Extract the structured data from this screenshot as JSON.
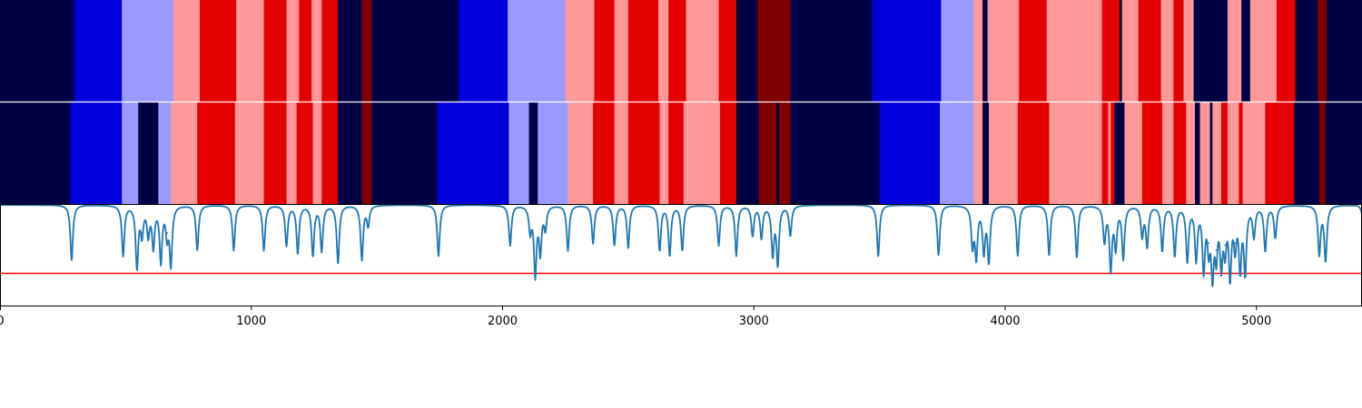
{
  "chart_data": {
    "type": "heatmap",
    "description_free": true,
    "x_range": [
      0,
      5420
    ],
    "x_ticks": [
      0,
      1000,
      2000,
      3000,
      4000,
      5000
    ],
    "x_tick_labels": [
      "0",
      "1000",
      "2000",
      "3000",
      "4000",
      "5000"
    ],
    "palette": {
      "navy": "#000044",
      "blue": "#0000DD",
      "lightblue": "#9999FF",
      "pink": "#FF9999",
      "red": "#E50000",
      "darkred": "#800000"
    },
    "tracks": [
      {
        "segments": [
          {
            "start": 0,
            "end": 295,
            "state": "navy"
          },
          {
            "start": 295,
            "end": 485,
            "state": "blue"
          },
          {
            "start": 485,
            "end": 690,
            "state": "lightblue"
          },
          {
            "start": 690,
            "end": 795,
            "state": "pink"
          },
          {
            "start": 795,
            "end": 940,
            "state": "red"
          },
          {
            "start": 940,
            "end": 1050,
            "state": "pink"
          },
          {
            "start": 1050,
            "end": 1140,
            "state": "red"
          },
          {
            "start": 1140,
            "end": 1190,
            "state": "pink"
          },
          {
            "start": 1190,
            "end": 1240,
            "state": "red"
          },
          {
            "start": 1240,
            "end": 1280,
            "state": "pink"
          },
          {
            "start": 1280,
            "end": 1345,
            "state": "red"
          },
          {
            "start": 1345,
            "end": 1440,
            "state": "navy"
          },
          {
            "start": 1440,
            "end": 1480,
            "state": "darkred"
          },
          {
            "start": 1480,
            "end": 1825,
            "state": "navy"
          },
          {
            "start": 1825,
            "end": 2020,
            "state": "blue"
          },
          {
            "start": 2020,
            "end": 2250,
            "state": "lightblue"
          },
          {
            "start": 2250,
            "end": 2365,
            "state": "pink"
          },
          {
            "start": 2365,
            "end": 2445,
            "state": "red"
          },
          {
            "start": 2445,
            "end": 2500,
            "state": "pink"
          },
          {
            "start": 2500,
            "end": 2620,
            "state": "red"
          },
          {
            "start": 2620,
            "end": 2660,
            "state": "pink"
          },
          {
            "start": 2660,
            "end": 2730,
            "state": "red"
          },
          {
            "start": 2730,
            "end": 2860,
            "state": "pink"
          },
          {
            "start": 2860,
            "end": 2930,
            "state": "red"
          },
          {
            "start": 2930,
            "end": 3015,
            "state": "navy"
          },
          {
            "start": 3015,
            "end": 3145,
            "state": "darkred"
          },
          {
            "start": 3145,
            "end": 3470,
            "state": "navy"
          },
          {
            "start": 3470,
            "end": 3745,
            "state": "blue"
          },
          {
            "start": 3745,
            "end": 3875,
            "state": "lightblue"
          },
          {
            "start": 3875,
            "end": 3910,
            "state": "pink"
          },
          {
            "start": 3910,
            "end": 3930,
            "state": "navy"
          },
          {
            "start": 3930,
            "end": 4055,
            "state": "pink"
          },
          {
            "start": 4055,
            "end": 4165,
            "state": "red"
          },
          {
            "start": 4165,
            "end": 4385,
            "state": "pink"
          },
          {
            "start": 4385,
            "end": 4455,
            "state": "red"
          },
          {
            "start": 4455,
            "end": 4465,
            "state": "navy"
          },
          {
            "start": 4465,
            "end": 4530,
            "state": "pink"
          },
          {
            "start": 4530,
            "end": 4620,
            "state": "red"
          },
          {
            "start": 4620,
            "end": 4670,
            "state": "pink"
          },
          {
            "start": 4670,
            "end": 4710,
            "state": "red"
          },
          {
            "start": 4710,
            "end": 4750,
            "state": "pink"
          },
          {
            "start": 4750,
            "end": 4885,
            "state": "navy"
          },
          {
            "start": 4885,
            "end": 4940,
            "state": "pink"
          },
          {
            "start": 4940,
            "end": 4975,
            "state": "navy"
          },
          {
            "start": 4975,
            "end": 5080,
            "state": "pink"
          },
          {
            "start": 5080,
            "end": 5155,
            "state": "red"
          },
          {
            "start": 5155,
            "end": 5245,
            "state": "navy"
          },
          {
            "start": 5245,
            "end": 5280,
            "state": "darkred"
          },
          {
            "start": 5280,
            "end": 5420,
            "state": "navy"
          }
        ]
      },
      {
        "segments": [
          {
            "start": 0,
            "end": 280,
            "state": "navy"
          },
          {
            "start": 280,
            "end": 485,
            "state": "blue"
          },
          {
            "start": 485,
            "end": 550,
            "state": "lightblue"
          },
          {
            "start": 550,
            "end": 630,
            "state": "navy"
          },
          {
            "start": 630,
            "end": 680,
            "state": "lightblue"
          },
          {
            "start": 680,
            "end": 785,
            "state": "pink"
          },
          {
            "start": 785,
            "end": 935,
            "state": "red"
          },
          {
            "start": 935,
            "end": 1050,
            "state": "pink"
          },
          {
            "start": 1050,
            "end": 1140,
            "state": "red"
          },
          {
            "start": 1140,
            "end": 1180,
            "state": "pink"
          },
          {
            "start": 1180,
            "end": 1245,
            "state": "red"
          },
          {
            "start": 1245,
            "end": 1280,
            "state": "pink"
          },
          {
            "start": 1280,
            "end": 1345,
            "state": "red"
          },
          {
            "start": 1345,
            "end": 1440,
            "state": "navy"
          },
          {
            "start": 1440,
            "end": 1480,
            "state": "darkred"
          },
          {
            "start": 1480,
            "end": 1740,
            "state": "navy"
          },
          {
            "start": 1740,
            "end": 2025,
            "state": "blue"
          },
          {
            "start": 2025,
            "end": 2105,
            "state": "lightblue"
          },
          {
            "start": 2105,
            "end": 2140,
            "state": "navy"
          },
          {
            "start": 2140,
            "end": 2260,
            "state": "lightblue"
          },
          {
            "start": 2260,
            "end": 2360,
            "state": "pink"
          },
          {
            "start": 2360,
            "end": 2445,
            "state": "red"
          },
          {
            "start": 2445,
            "end": 2500,
            "state": "pink"
          },
          {
            "start": 2500,
            "end": 2625,
            "state": "red"
          },
          {
            "start": 2625,
            "end": 2660,
            "state": "pink"
          },
          {
            "start": 2660,
            "end": 2720,
            "state": "red"
          },
          {
            "start": 2720,
            "end": 2865,
            "state": "pink"
          },
          {
            "start": 2865,
            "end": 2930,
            "state": "red"
          },
          {
            "start": 2930,
            "end": 3020,
            "state": "navy"
          },
          {
            "start": 3020,
            "end": 3090,
            "state": "darkred"
          },
          {
            "start": 3090,
            "end": 3100,
            "state": "navy"
          },
          {
            "start": 3100,
            "end": 3145,
            "state": "darkred"
          },
          {
            "start": 3145,
            "end": 3500,
            "state": "navy"
          },
          {
            "start": 3500,
            "end": 3740,
            "state": "blue"
          },
          {
            "start": 3740,
            "end": 3875,
            "state": "lightblue"
          },
          {
            "start": 3875,
            "end": 3910,
            "state": "pink"
          },
          {
            "start": 3910,
            "end": 3935,
            "state": "navy"
          },
          {
            "start": 3935,
            "end": 4050,
            "state": "pink"
          },
          {
            "start": 4050,
            "end": 4175,
            "state": "red"
          },
          {
            "start": 4175,
            "end": 4385,
            "state": "pink"
          },
          {
            "start": 4385,
            "end": 4410,
            "state": "red"
          },
          {
            "start": 4410,
            "end": 4420,
            "state": "pink"
          },
          {
            "start": 4420,
            "end": 4435,
            "state": "red"
          },
          {
            "start": 4435,
            "end": 4475,
            "state": "navy"
          },
          {
            "start": 4475,
            "end": 4545,
            "state": "pink"
          },
          {
            "start": 4545,
            "end": 4625,
            "state": "red"
          },
          {
            "start": 4625,
            "end": 4670,
            "state": "pink"
          },
          {
            "start": 4670,
            "end": 4720,
            "state": "red"
          },
          {
            "start": 4720,
            "end": 4755,
            "state": "pink"
          },
          {
            "start": 4755,
            "end": 4775,
            "state": "navy"
          },
          {
            "start": 4775,
            "end": 4815,
            "state": "pink"
          },
          {
            "start": 4815,
            "end": 4825,
            "state": "navy"
          },
          {
            "start": 4825,
            "end": 4860,
            "state": "pink"
          },
          {
            "start": 4860,
            "end": 4885,
            "state": "red"
          },
          {
            "start": 4885,
            "end": 4930,
            "state": "pink"
          },
          {
            "start": 4930,
            "end": 4945,
            "state": "red"
          },
          {
            "start": 4945,
            "end": 5035,
            "state": "pink"
          },
          {
            "start": 5035,
            "end": 5150,
            "state": "red"
          },
          {
            "start": 5150,
            "end": 5250,
            "state": "navy"
          },
          {
            "start": 5250,
            "end": 5275,
            "state": "darkred"
          },
          {
            "start": 5275,
            "end": 5420,
            "state": "navy"
          }
        ]
      }
    ],
    "line": {
      "color": "#1F77B4",
      "y_range": [
        0,
        1
      ],
      "baseline": 1.0,
      "threshold": {
        "value": 0.32,
        "color": "#FF0000"
      },
      "dips": [
        [
          285,
          0.45
        ],
        [
          490,
          0.5
        ],
        [
          545,
          0.38
        ],
        [
          565,
          0.72
        ],
        [
          590,
          0.72
        ],
        [
          610,
          0.6
        ],
        [
          640,
          0.45
        ],
        [
          665,
          0.72
        ],
        [
          680,
          0.42
        ],
        [
          785,
          0.55
        ],
        [
          930,
          0.55
        ],
        [
          1050,
          0.55
        ],
        [
          1140,
          0.6
        ],
        [
          1185,
          0.52
        ],
        [
          1245,
          0.5
        ],
        [
          1280,
          0.55
        ],
        [
          1345,
          0.42
        ],
        [
          1440,
          0.46
        ],
        [
          1465,
          0.8
        ],
        [
          1745,
          0.49
        ],
        [
          2030,
          0.6
        ],
        [
          2110,
          0.75
        ],
        [
          2130,
          0.32
        ],
        [
          2150,
          0.55
        ],
        [
          2170,
          0.78
        ],
        [
          2260,
          0.55
        ],
        [
          2360,
          0.62
        ],
        [
          2445,
          0.6
        ],
        [
          2500,
          0.58
        ],
        [
          2625,
          0.55
        ],
        [
          2665,
          0.5
        ],
        [
          2715,
          0.55
        ],
        [
          2860,
          0.6
        ],
        [
          2930,
          0.5
        ],
        [
          2995,
          0.7
        ],
        [
          3030,
          0.68
        ],
        [
          3075,
          0.52
        ],
        [
          3095,
          0.42
        ],
        [
          3145,
          0.7
        ],
        [
          3495,
          0.49
        ],
        [
          3735,
          0.5
        ],
        [
          3870,
          0.62
        ],
        [
          3885,
          0.5
        ],
        [
          3915,
          0.55
        ],
        [
          3935,
          0.45
        ],
        [
          4050,
          0.5
        ],
        [
          4175,
          0.5
        ],
        [
          4285,
          0.48
        ],
        [
          4395,
          0.65
        ],
        [
          4420,
          0.38
        ],
        [
          4440,
          0.6
        ],
        [
          4470,
          0.48
        ],
        [
          4545,
          0.7
        ],
        [
          4565,
          0.6
        ],
        [
          4625,
          0.55
        ],
        [
          4675,
          0.5
        ],
        [
          4725,
          0.45
        ],
        [
          4760,
          0.48
        ],
        [
          4790,
          0.38
        ],
        [
          4810,
          0.62
        ],
        [
          4825,
          0.35
        ],
        [
          4840,
          0.55
        ],
        [
          4860,
          0.45
        ],
        [
          4875,
          0.6
        ],
        [
          4895,
          0.32
        ],
        [
          4915,
          0.62
        ],
        [
          4935,
          0.4
        ],
        [
          4955,
          0.35
        ],
        [
          4990,
          0.7
        ],
        [
          5035,
          0.55
        ],
        [
          5075,
          0.68
        ],
        [
          5250,
          0.52
        ],
        [
          5275,
          0.45
        ],
        [
          5420,
          0.92
        ]
      ]
    }
  }
}
